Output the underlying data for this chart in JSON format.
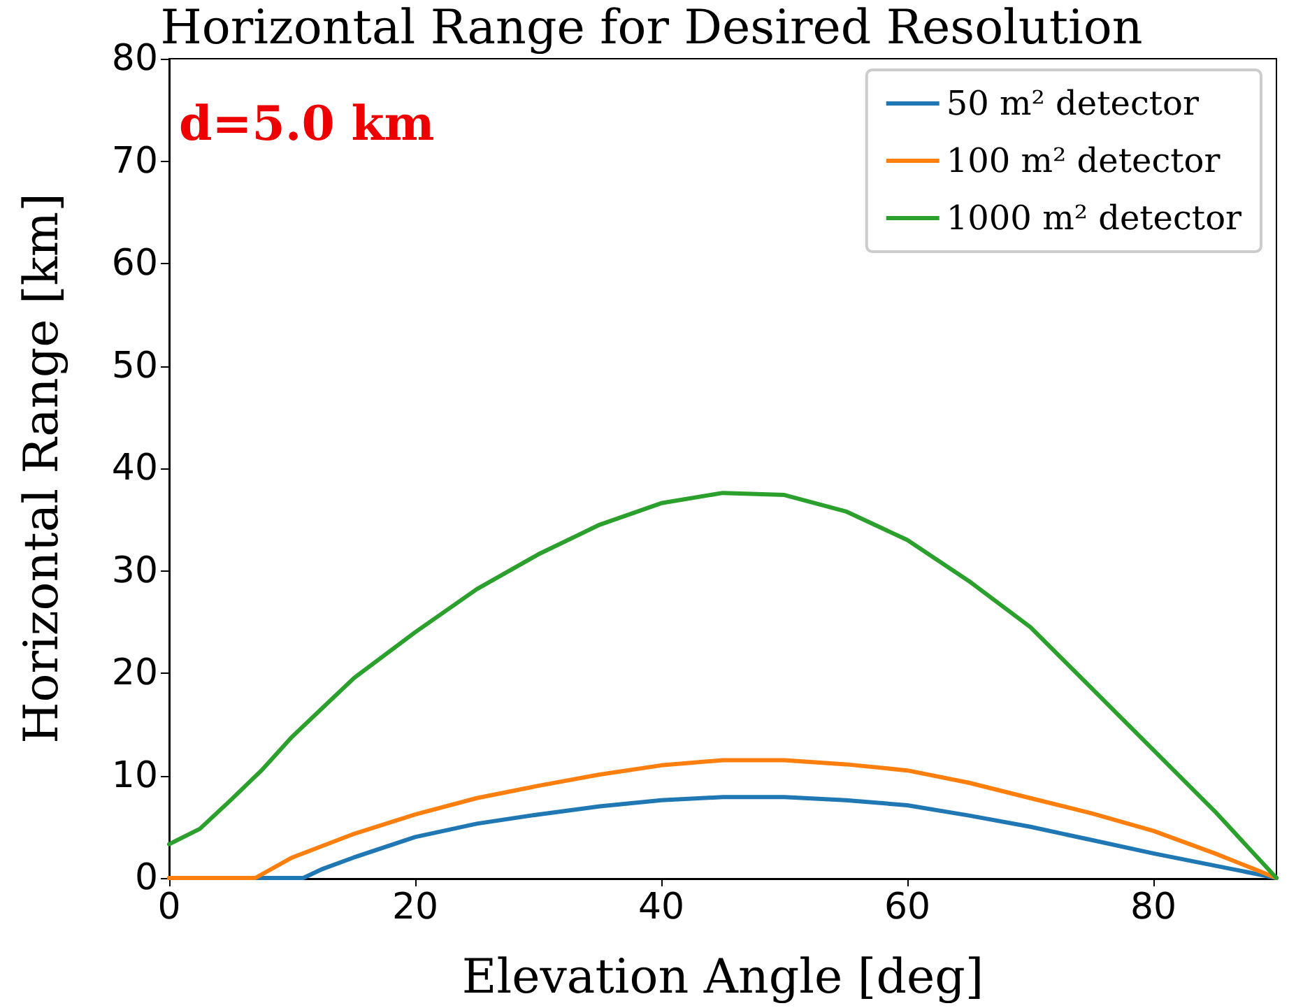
{
  "chart_data": {
    "type": "line",
    "title": "Horizontal Range for Desired Resolution",
    "xlabel": "Elevation Angle [deg]",
    "ylabel": "Horizontal Range [km]",
    "annotations": [
      "d=5.0 km"
    ],
    "xlim": [
      0,
      90
    ],
    "xticks": [
      0,
      20,
      40,
      60,
      80
    ],
    "ylim": [
      0,
      80
    ],
    "yticks": [
      0,
      10,
      20,
      30,
      40,
      50,
      60,
      70,
      80
    ],
    "grid": false,
    "legend": "top right",
    "marker": "none",
    "line_style": "solid",
    "series": [
      {
        "name": "50 m² detector",
        "color": "#1f77b4",
        "x": [
          0,
          10.9,
          12.5,
          15,
          20,
          25,
          30,
          35,
          40,
          45,
          50,
          55,
          60,
          65,
          70,
          75,
          80,
          85,
          90
        ],
        "values": [
          0,
          0,
          0.9,
          2,
          4,
          5.3,
          6.2,
          7,
          7.6,
          7.9,
          7.9,
          7.6,
          7.1,
          6.1,
          5,
          3.7,
          2.4,
          1.2,
          0
        ]
      },
      {
        "name": "100 m² detector",
        "color": "#ff7f0e",
        "x": [
          0,
          7,
          10,
          15,
          20,
          25,
          30,
          35,
          40,
          45,
          50,
          55,
          60,
          65,
          70,
          75,
          80,
          85,
          90
        ],
        "values": [
          0,
          0,
          2,
          4.3,
          6.2,
          7.8,
          9,
          10.1,
          11,
          11.5,
          11.5,
          11.1,
          10.5,
          9.3,
          7.8,
          6.3,
          4.6,
          2.4,
          0
        ]
      },
      {
        "name": "1000 m² detector",
        "color": "#2ca02c",
        "x": [
          0,
          2.5,
          5,
          7.5,
          10,
          15,
          20,
          25,
          30,
          35,
          40,
          45,
          50,
          55,
          60,
          65,
          70,
          75,
          80,
          85,
          90
        ],
        "values": [
          3.3,
          4.8,
          7.6,
          10.5,
          13.8,
          19.5,
          24,
          28.2,
          31.6,
          34.5,
          36.6,
          37.6,
          37.4,
          35.8,
          33,
          29,
          24.5,
          18.5,
          12.5,
          6.5,
          0
        ]
      }
    ]
  }
}
